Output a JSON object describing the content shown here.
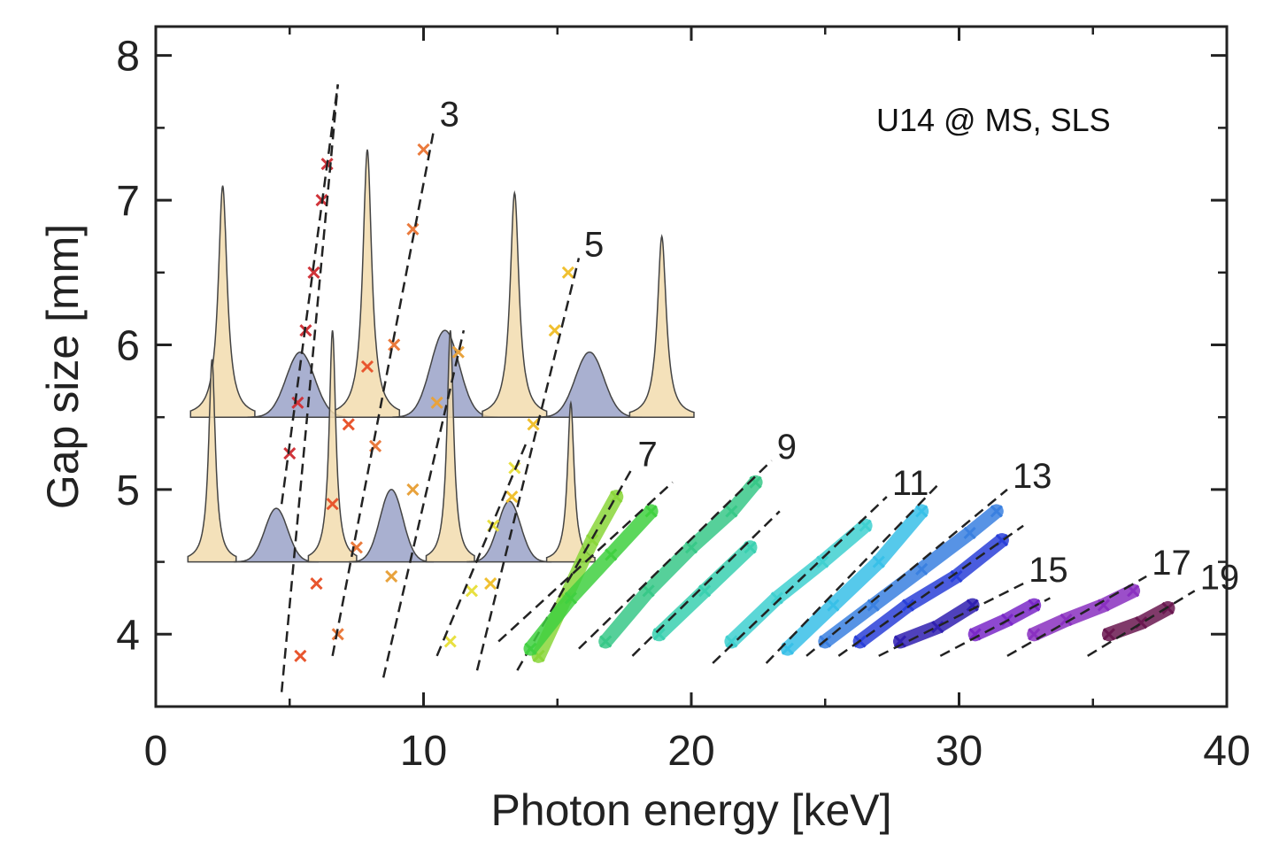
{
  "chart_data": {
    "type": "scatter",
    "annotation": "U14 @ MS, SLS",
    "xlabel": "Photon energy [keV]",
    "ylabel": "Gap size [mm]",
    "xlim": [
      0,
      40
    ],
    "ylim": [
      3.5,
      8.2
    ],
    "xticks": [
      0,
      10,
      20,
      30,
      40
    ],
    "yticks": [
      4,
      5,
      6,
      7,
      8
    ],
    "grid": false,
    "harmonics": [
      {
        "order": 1,
        "label": "",
        "color": "#d0343a",
        "dash": [
          [
            4.7,
            4.9
          ],
          [
            6.8,
            7.8
          ]
        ],
        "points": [
          [
            5.0,
            5.25
          ],
          [
            5.3,
            5.6
          ],
          [
            5.6,
            6.1
          ],
          [
            5.9,
            6.5
          ],
          [
            6.2,
            7.0
          ],
          [
            6.4,
            7.25
          ]
        ]
      },
      {
        "order": 1,
        "label": "",
        "color": "#e8562e",
        "dash": [
          [
            4.7,
            3.6
          ],
          [
            6.8,
            7.8
          ]
        ],
        "points": [
          [
            5.4,
            3.85
          ],
          [
            6.0,
            4.35
          ],
          [
            6.6,
            4.9
          ],
          [
            7.2,
            5.45
          ],
          [
            7.9,
            5.85
          ]
        ]
      },
      {
        "order": 3,
        "label": "3",
        "color": "#ea7a3c",
        "dash": [
          [
            6.6,
            3.85
          ],
          [
            10.4,
            7.5
          ]
        ],
        "points": [
          [
            6.8,
            4.0
          ],
          [
            7.5,
            4.6
          ],
          [
            8.2,
            5.3
          ],
          [
            8.9,
            6.0
          ],
          [
            9.6,
            6.8
          ],
          [
            10.0,
            7.35
          ]
        ]
      },
      {
        "order": 3,
        "label": "",
        "color": "#e8a23c",
        "dash": [
          [
            8.5,
            3.7
          ],
          [
            11.5,
            6.1
          ]
        ],
        "points": [
          [
            8.8,
            4.4
          ],
          [
            9.6,
            5.0
          ],
          [
            10.5,
            5.6
          ],
          [
            11.3,
            5.95
          ]
        ]
      },
      {
        "order": 5,
        "label": "5",
        "color": "#f0c030",
        "dash": [
          [
            12.0,
            3.75
          ],
          [
            15.8,
            6.6
          ]
        ],
        "points": [
          [
            12.5,
            4.35
          ],
          [
            13.3,
            4.95
          ],
          [
            14.1,
            5.45
          ],
          [
            14.9,
            6.1
          ],
          [
            15.4,
            6.5
          ]
        ]
      },
      {
        "order": 5,
        "label": "",
        "color": "#e8e040",
        "dash": [
          [
            10.5,
            3.85
          ],
          [
            13.9,
            5.35
          ]
        ],
        "points": [
          [
            11.0,
            3.95
          ],
          [
            11.8,
            4.3
          ],
          [
            12.6,
            4.75
          ],
          [
            13.4,
            5.15
          ]
        ]
      },
      {
        "order": 7,
        "label": "7",
        "color": "#8ad63a",
        "dash": [
          [
            13.5,
            3.75
          ],
          [
            17.8,
            5.15
          ]
        ],
        "points": [
          [
            14.3,
            3.85
          ],
          [
            15.3,
            4.25
          ],
          [
            16.3,
            4.65
          ],
          [
            17.2,
            4.95
          ]
        ]
      },
      {
        "order": 7,
        "label": "",
        "color": "#40d040",
        "dash": [
          [
            12.8,
            3.95
          ],
          [
            19.3,
            5.05
          ]
        ],
        "points": [
          [
            14.0,
            3.9
          ],
          [
            15.5,
            4.25
          ],
          [
            17.0,
            4.55
          ],
          [
            18.5,
            4.85
          ]
        ]
      },
      {
        "order": 9,
        "label": "9",
        "color": "#38c888",
        "dash": [
          [
            15.8,
            3.9
          ],
          [
            23.0,
            5.2
          ]
        ],
        "points": [
          [
            16.8,
            3.95
          ],
          [
            18.4,
            4.3
          ],
          [
            20.0,
            4.6
          ],
          [
            21.5,
            4.85
          ],
          [
            22.4,
            5.05
          ]
        ]
      },
      {
        "order": 9,
        "label": "",
        "color": "#3ad0b0",
        "dash": [
          [
            17.8,
            3.85
          ],
          [
            23.3,
            4.85
          ]
        ],
        "points": [
          [
            18.8,
            4.0
          ],
          [
            20.5,
            4.3
          ],
          [
            22.2,
            4.6
          ]
        ]
      },
      {
        "order": 11,
        "label": "11",
        "color": "#40d0d0",
        "dash": [
          [
            20.8,
            3.8
          ],
          [
            27.3,
            4.95
          ]
        ],
        "points": [
          [
            21.5,
            3.95
          ],
          [
            23.2,
            4.25
          ],
          [
            24.9,
            4.5
          ],
          [
            26.5,
            4.75
          ]
        ]
      },
      {
        "order": 11,
        "label": "",
        "color": "#38c0e8",
        "dash": [
          [
            22.8,
            3.8
          ],
          [
            29.3,
            5.05
          ]
        ],
        "points": [
          [
            23.6,
            3.9
          ],
          [
            25.3,
            4.2
          ],
          [
            27.0,
            4.5
          ],
          [
            28.6,
            4.85
          ]
        ]
      },
      {
        "order": 13,
        "label": "13",
        "color": "#3a80e0",
        "dash": [
          [
            24.3,
            3.85
          ],
          [
            31.8,
            5.0
          ]
        ],
        "points": [
          [
            25.0,
            3.95
          ],
          [
            26.8,
            4.2
          ],
          [
            28.6,
            4.45
          ],
          [
            30.4,
            4.7
          ],
          [
            31.4,
            4.85
          ]
        ]
      },
      {
        "order": 13,
        "label": "",
        "color": "#2a40d8",
        "dash": [
          [
            25.5,
            3.85
          ],
          [
            32.4,
            4.75
          ]
        ],
        "points": [
          [
            26.3,
            3.95
          ],
          [
            28.1,
            4.2
          ],
          [
            29.9,
            4.4
          ],
          [
            31.6,
            4.65
          ]
        ]
      },
      {
        "order": 15,
        "label": "15",
        "color": "#3020b0",
        "dash": [
          [
            27.0,
            3.85
          ],
          [
            32.4,
            4.35
          ]
        ],
        "points": [
          [
            27.8,
            3.95
          ],
          [
            29.2,
            4.05
          ],
          [
            30.5,
            4.2
          ]
        ]
      },
      {
        "order": 15,
        "label": "",
        "color": "#7a28c8",
        "dash": [
          [
            29.3,
            3.85
          ],
          [
            33.4,
            4.25
          ]
        ],
        "points": [
          [
            30.6,
            4.0
          ],
          [
            31.8,
            4.1
          ],
          [
            32.8,
            4.2
          ]
        ]
      },
      {
        "order": 17,
        "label": "17",
        "color": "#8a30c0",
        "dash": [
          [
            31.8,
            3.85
          ],
          [
            37.0,
            4.4
          ]
        ],
        "points": [
          [
            32.8,
            4.0
          ],
          [
            34.0,
            4.1
          ],
          [
            35.4,
            4.2
          ],
          [
            36.5,
            4.3
          ]
        ]
      },
      {
        "order": 19,
        "label": "19",
        "color": "#6a1850",
        "dash": [
          [
            34.8,
            3.85
          ],
          [
            38.8,
            4.3
          ]
        ],
        "points": [
          [
            35.6,
            4.0
          ],
          [
            36.8,
            4.08
          ],
          [
            37.8,
            4.18
          ]
        ]
      }
    ],
    "spectra": [
      {
        "baseline": 5.5,
        "peaks": [
          [
            2.5,
            1.6,
            0.2
          ],
          [
            5.4,
            0.45,
            0.75
          ],
          [
            7.9,
            1.85,
            0.2
          ],
          [
            10.8,
            0.6,
            0.75
          ],
          [
            13.4,
            1.55,
            0.2
          ],
          [
            16.2,
            0.45,
            0.75
          ],
          [
            18.9,
            1.25,
            0.2
          ]
        ],
        "x_end": 21
      }
    ],
    "spectra2": [
      {
        "baseline": 4.5,
        "peaks": [
          [
            2.1,
            1.4,
            0.15
          ],
          [
            4.5,
            0.37,
            0.6
          ],
          [
            6.6,
            1.6,
            0.15
          ],
          [
            8.8,
            0.5,
            0.6
          ],
          [
            11.0,
            1.6,
            0.15
          ],
          [
            13.2,
            0.42,
            0.6
          ],
          [
            15.5,
            1.1,
            0.15
          ]
        ],
        "x_end": 21
      }
    ]
  }
}
